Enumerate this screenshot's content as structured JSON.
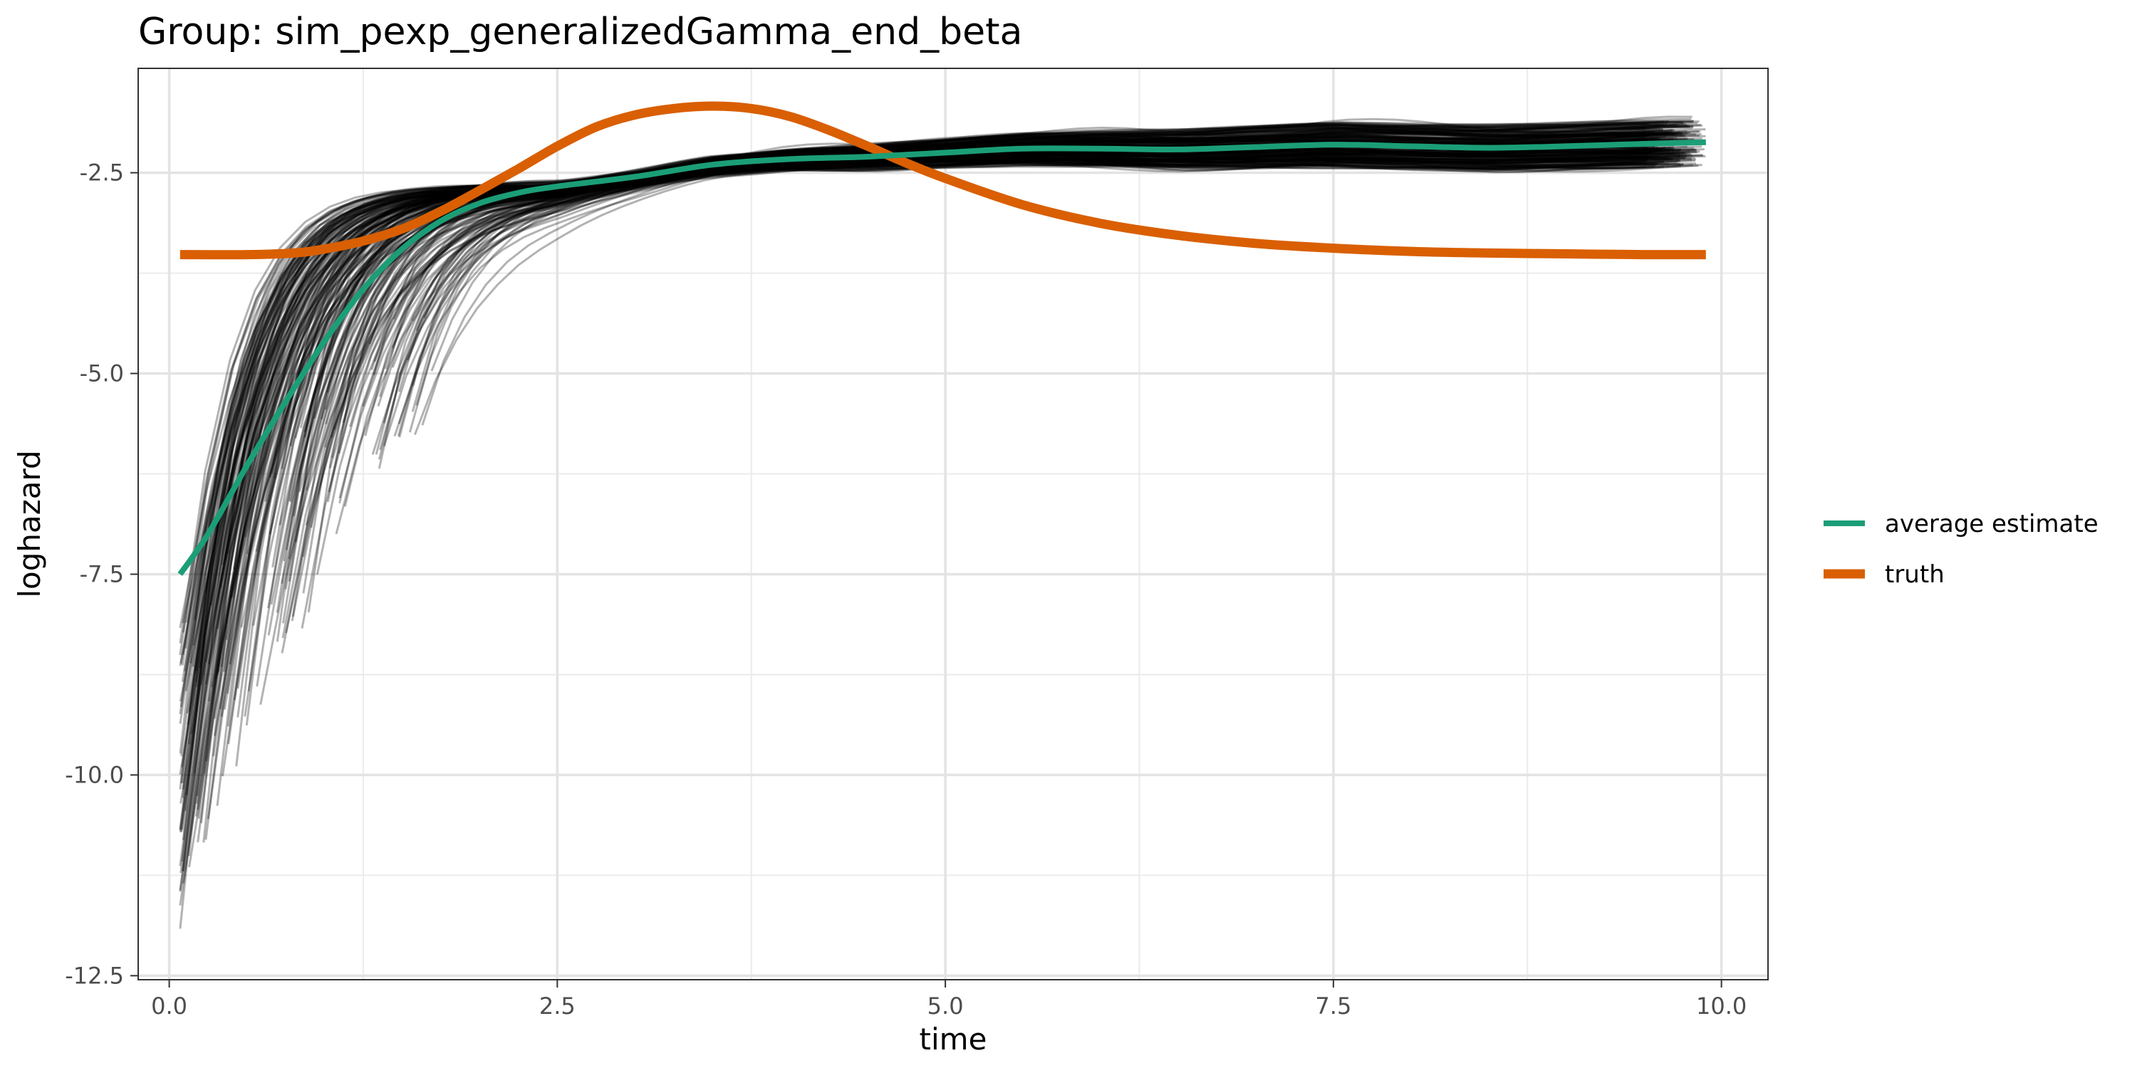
{
  "chart_data": {
    "type": "line",
    "title": "Group: sim_pexp_generalizedGamma_end_beta",
    "xlabel": "time",
    "ylabel": "loghazard",
    "xlim": [
      -0.2,
      10.3
    ],
    "ylim": [
      -12.55,
      -1.2
    ],
    "x_ticks": [
      0.0,
      2.5,
      5.0,
      7.5,
      10.0
    ],
    "x_tick_labels": [
      "0.0",
      "2.5",
      "5.0",
      "7.5",
      "10.0"
    ],
    "y_ticks": [
      -2.5,
      -5.0,
      -7.5,
      -10.0,
      -12.5
    ],
    "y_tick_labels": [
      "-2.5",
      "-5.0",
      "-7.5",
      "-10.0",
      "-12.5"
    ],
    "grid": true,
    "legend_position": "right",
    "series": [
      {
        "name": "average estimate",
        "color": "#1b9e77",
        "x": [
          0.07,
          0.25,
          0.5,
          0.75,
          1.0,
          1.25,
          1.5,
          1.75,
          2.0,
          2.25,
          2.5,
          3.0,
          3.5,
          4.0,
          4.5,
          5.0,
          5.5,
          6.0,
          6.5,
          7.0,
          7.5,
          8.0,
          8.5,
          9.0,
          9.5,
          9.9
        ],
        "y": [
          -7.5,
          -7.0,
          -6.15,
          -5.35,
          -4.6,
          -3.95,
          -3.45,
          -3.1,
          -2.88,
          -2.75,
          -2.67,
          -2.55,
          -2.4,
          -2.33,
          -2.3,
          -2.25,
          -2.2,
          -2.2,
          -2.21,
          -2.18,
          -2.15,
          -2.17,
          -2.19,
          -2.17,
          -2.14,
          -2.12
        ]
      },
      {
        "name": "truth",
        "color": "#d95f02",
        "x": [
          0.07,
          0.5,
          0.8,
          1.0,
          1.25,
          1.5,
          1.75,
          2.0,
          2.25,
          2.5,
          2.75,
          3.0,
          3.25,
          3.5,
          3.75,
          4.0,
          4.25,
          4.5,
          4.75,
          5.0,
          5.5,
          6.0,
          6.5,
          7.0,
          7.5,
          8.0,
          8.5,
          9.0,
          9.5,
          9.9
        ],
        "y": [
          -3.52,
          -3.52,
          -3.5,
          -3.45,
          -3.35,
          -3.2,
          -2.98,
          -2.72,
          -2.45,
          -2.17,
          -1.93,
          -1.78,
          -1.7,
          -1.67,
          -1.7,
          -1.8,
          -1.97,
          -2.17,
          -2.38,
          -2.57,
          -2.9,
          -3.13,
          -3.28,
          -3.38,
          -3.44,
          -3.48,
          -3.5,
          -3.51,
          -3.52,
          -3.52
        ]
      }
    ],
    "replicate_lines": {
      "color": "#000000",
      "opacity": 0.3,
      "count": 220,
      "x_start_range": [
        0.07,
        1.7
      ],
      "y_start_range": [
        -12.1,
        -4.0
      ],
      "x_end": [
        9.5,
        9.9
      ],
      "y_end_range": [
        -2.65,
        -1.75
      ]
    }
  }
}
